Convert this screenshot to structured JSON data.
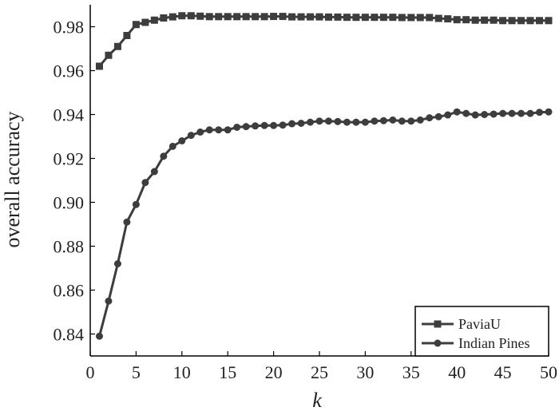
{
  "chart_data": {
    "type": "line",
    "xlabel": "k",
    "ylabel": "overall accuracy",
    "xlim": [
      0,
      50
    ],
    "ylim": [
      0.83,
      0.99
    ],
    "xticks": [
      0,
      5,
      10,
      15,
      20,
      25,
      30,
      35,
      40,
      45,
      50
    ],
    "yticks": [
      0.84,
      0.86,
      0.88,
      0.9,
      0.92,
      0.94,
      0.96,
      0.98
    ],
    "ytick_labels": [
      "0.84",
      "0.86",
      "0.88",
      "0.90",
      "0.92",
      "0.94",
      "0.96",
      "0.98"
    ],
    "grid": false,
    "legend_position": "bottom-right",
    "line_color": "#3d3d3d",
    "x": [
      1,
      2,
      3,
      4,
      5,
      6,
      7,
      8,
      9,
      10,
      11,
      12,
      13,
      14,
      15,
      16,
      17,
      18,
      19,
      20,
      21,
      22,
      23,
      24,
      25,
      26,
      27,
      28,
      29,
      30,
      31,
      32,
      33,
      34,
      35,
      36,
      37,
      38,
      39,
      40,
      41,
      42,
      43,
      44,
      45,
      46,
      47,
      48,
      49,
      50
    ],
    "series": [
      {
        "name": "PaviaU",
        "marker": "square",
        "values": [
          0.962,
          0.967,
          0.971,
          0.976,
          0.981,
          0.982,
          0.983,
          0.984,
          0.9845,
          0.985,
          0.985,
          0.9848,
          0.9846,
          0.9846,
          0.9846,
          0.9846,
          0.9846,
          0.9846,
          0.9846,
          0.9847,
          0.9847,
          0.9845,
          0.9845,
          0.9845,
          0.9845,
          0.9844,
          0.9844,
          0.9843,
          0.9843,
          0.9843,
          0.9843,
          0.9843,
          0.9843,
          0.9842,
          0.9842,
          0.9842,
          0.9842,
          0.9838,
          0.9836,
          0.9832,
          0.9832,
          0.983,
          0.983,
          0.983,
          0.9828,
          0.9828,
          0.9828,
          0.9828,
          0.9828,
          0.9828
        ]
      },
      {
        "name": "Indian Pines",
        "marker": "circle",
        "values": [
          0.839,
          0.855,
          0.872,
          0.891,
          0.899,
          0.909,
          0.914,
          0.921,
          0.9255,
          0.928,
          0.9305,
          0.932,
          0.933,
          0.933,
          0.933,
          0.9342,
          0.9345,
          0.9348,
          0.935,
          0.935,
          0.9352,
          0.9358,
          0.936,
          0.9365,
          0.937,
          0.937,
          0.9368,
          0.9365,
          0.9365,
          0.9365,
          0.937,
          0.9372,
          0.9375,
          0.937,
          0.937,
          0.9375,
          0.9385,
          0.939,
          0.9398,
          0.9412,
          0.9405,
          0.9398,
          0.94,
          0.9402,
          0.9405,
          0.9405,
          0.9405,
          0.9405,
          0.941,
          0.9412
        ]
      }
    ]
  }
}
